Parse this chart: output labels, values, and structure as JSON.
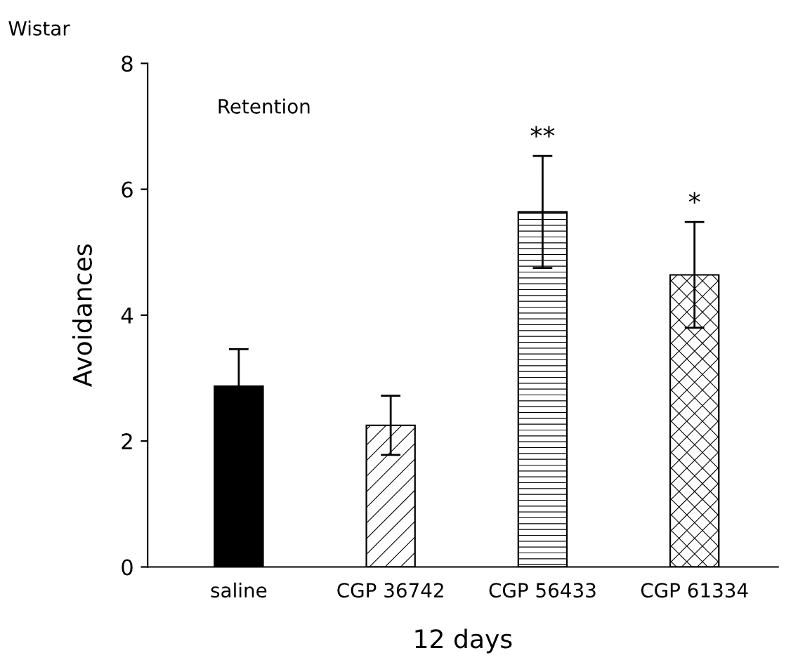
{
  "chart_data": {
    "type": "bar",
    "title": "Wistar",
    "xlabel": "12 days",
    "ylabel": "Avoidances",
    "categories": [
      "saline",
      "CGP 36742",
      "CGP 56433",
      "CGP 61334"
    ],
    "values": [
      2.87,
      2.25,
      5.64,
      4.64
    ],
    "errors": [
      0.59,
      0.47,
      0.89,
      0.84
    ],
    "colors": [
      "#000000",
      "#000000",
      "#000000",
      "#000000"
    ],
    "ylim": [
      0,
      8
    ],
    "yticks": [
      0,
      2,
      4,
      6,
      8
    ],
    "grid": false,
    "legend": false,
    "annotations": [
      "Retention",
      {
        "text": "**",
        "x": "CGP 56433",
        "y": 6.53
      },
      {
        "text": "*",
        "x": "CGP 61334",
        "y": 5.48
      }
    ]
  }
}
